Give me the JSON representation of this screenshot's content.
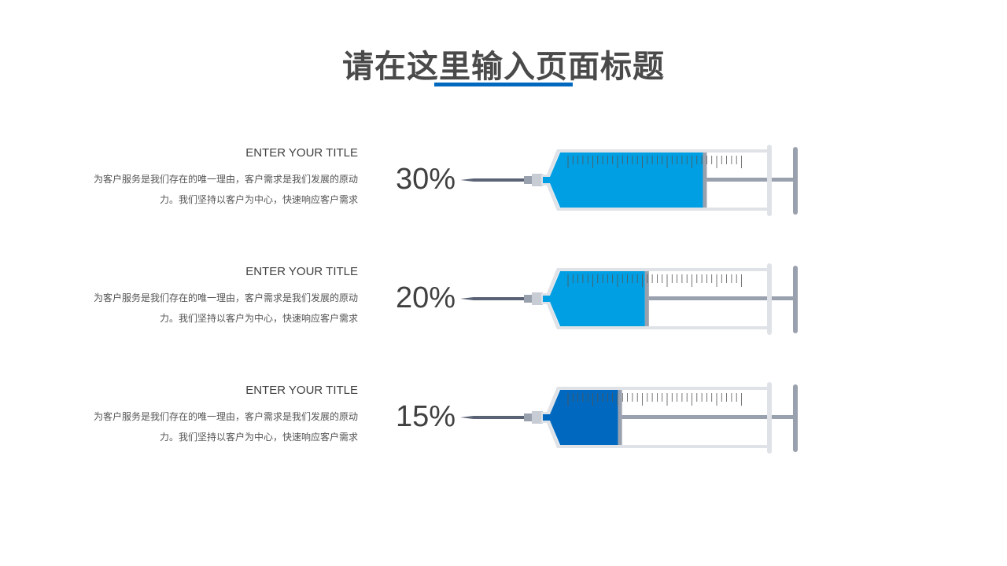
{
  "title": "请在这里输入页面标题",
  "colors": {
    "accent": "#0068BE",
    "fill_light": "#009FE3",
    "fill_dark": "#0068BE",
    "barrel": "#DFE2E7",
    "plunger": "#9AA1AE",
    "needle": "#5A6275"
  },
  "rows": [
    {
      "title": "ENTER YOUR TITLE",
      "desc": "为客户服务是我们存在的唯一理由，客户需求是我们发展的原动力。我们坚持以客户为中心，快速响应客户需求",
      "percent": "30%",
      "fill_level": 0.69,
      "fill_color": "#009FE3"
    },
    {
      "title": "ENTER YOUR TITLE",
      "desc": "为客户服务是我们存在的唯一理由，客户需求是我们发展的原动力。我们坚持以客户为中心，快速响应客户需求",
      "percent": "20%",
      "fill_level": 0.41,
      "fill_color": "#009FE3"
    },
    {
      "title": "ENTER YOUR TITLE",
      "desc": "为客户服务是我们存在的唯一理由，客户需求是我们发展的原动力。我们坚持以客户为中心，快速响应客户需求",
      "percent": "15%",
      "fill_level": 0.28,
      "fill_color": "#0068BE"
    }
  ]
}
